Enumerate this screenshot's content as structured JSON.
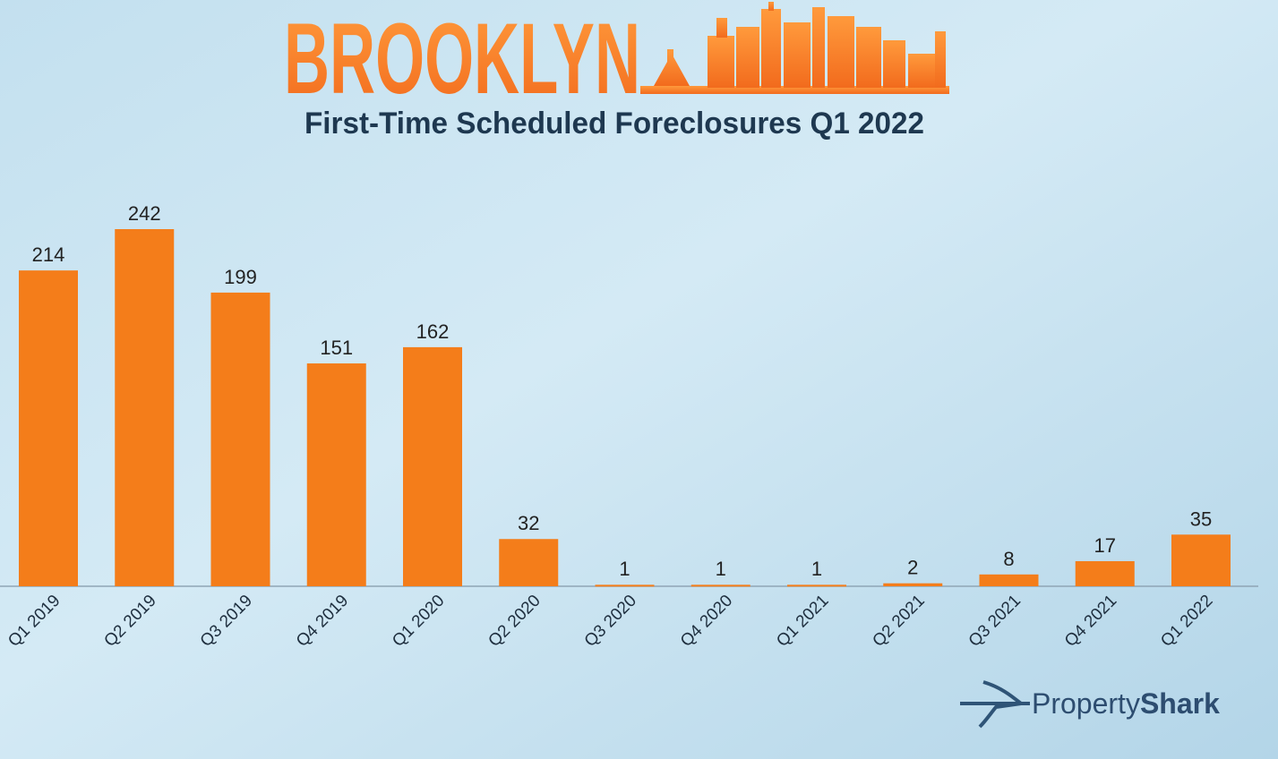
{
  "chart_data": {
    "type": "bar",
    "title": "BROOKLYN",
    "subtitle": "First-Time Scheduled Foreclosures Q1 2022",
    "categories": [
      "Q1 2019",
      "Q2 2019",
      "Q3 2019",
      "Q4 2019",
      "Q1 2020",
      "Q2 2020",
      "Q3 2020",
      "Q4 2020",
      "Q1 2021",
      "Q2 2021",
      "Q3 2021",
      "Q4 2021",
      "Q1 2022"
    ],
    "values": [
      214,
      242,
      199,
      151,
      162,
      32,
      1,
      1,
      1,
      2,
      8,
      17,
      35
    ],
    "color": "#f47d1a",
    "brand": [
      "Property",
      "Shark"
    ]
  }
}
